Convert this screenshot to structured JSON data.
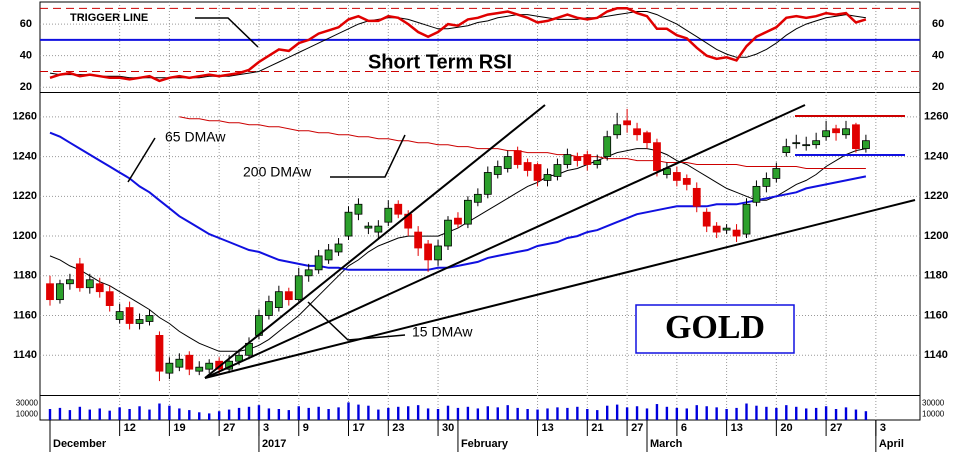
{
  "chart_data": {
    "type": "candlestick",
    "title": "GOLD",
    "up_color": "#2ca02c",
    "down_color": "#e00000",
    "ylim": [
      1120,
      1272
    ],
    "yticks": [
      1140,
      1160,
      1180,
      1200,
      1220,
      1240,
      1260
    ],
    "grid": true,
    "categories": [
      null,
      null,
      null,
      null,
      null,
      null,
      null,
      "12",
      null,
      null,
      null,
      null,
      "19",
      null,
      null,
      null,
      null,
      "27",
      null,
      null,
      null,
      "3",
      null,
      null,
      null,
      "9",
      null,
      null,
      null,
      null,
      "17",
      null,
      null,
      null,
      "23",
      null,
      null,
      null,
      null,
      "30",
      null,
      null,
      null,
      null,
      null,
      null,
      null,
      null,
      null,
      "13",
      null,
      null,
      null,
      null,
      "21",
      null,
      null,
      null,
      "27",
      null,
      null,
      null,
      null,
      "6",
      null,
      null,
      null,
      null,
      "13",
      null,
      null,
      null,
      null,
      "20",
      null,
      null,
      null,
      null,
      "27",
      null,
      null,
      null,
      null,
      "3"
    ],
    "months": [
      {
        "value": 0,
        "label": "December"
      },
      {
        "value": 21,
        "label": "2017"
      },
      {
        "value": 41,
        "label": "February"
      },
      {
        "value": 60,
        "label": "March"
      },
      {
        "value": 83,
        "label": "April"
      }
    ],
    "ohlc": [
      [
        1176,
        1180,
        1165,
        1168
      ],
      [
        1168,
        1178,
        1166,
        1176
      ],
      [
        1176,
        1181,
        1173,
        1178
      ],
      [
        1186,
        1189,
        1172,
        1174
      ],
      [
        1174,
        1181,
        1171,
        1178
      ],
      [
        1176,
        1179,
        1169,
        1172
      ],
      [
        1172,
        1175,
        1162,
        1165
      ],
      [
        1158,
        1166,
        1156,
        1162
      ],
      [
        1164,
        1167,
        1153,
        1156
      ],
      [
        1156,
        1161,
        1153,
        1158
      ],
      [
        1157,
        1163,
        1155,
        1160
      ],
      [
        1150,
        1152,
        1127,
        1132
      ],
      [
        1131,
        1139,
        1128,
        1136
      ],
      [
        1134,
        1141,
        1132,
        1138
      ],
      [
        1140,
        1142,
        1130,
        1133
      ],
      [
        1132,
        1137,
        1130,
        1134
      ],
      [
        1133,
        1138,
        1131,
        1136
      ],
      [
        1137,
        1139,
        1130,
        1133
      ],
      [
        1133,
        1140,
        1131,
        1137
      ],
      [
        1137,
        1143,
        1135,
        1140
      ],
      [
        1140,
        1149,
        1138,
        1146
      ],
      [
        1150,
        1163,
        1148,
        1160
      ],
      [
        1160,
        1170,
        1158,
        1167
      ],
      [
        1164,
        1175,
        1162,
        1172
      ],
      [
        1172,
        1174,
        1165,
        1168
      ],
      [
        1168,
        1184,
        1167,
        1180
      ],
      [
        1180,
        1186,
        1177,
        1183
      ],
      [
        1183,
        1193,
        1181,
        1190
      ],
      [
        1188,
        1196,
        1186,
        1193
      ],
      [
        1192,
        1199,
        1190,
        1196
      ],
      [
        1200,
        1215,
        1198,
        1212
      ],
      [
        1211,
        1219,
        1208,
        1216
      ],
      [
        1204,
        1207,
        1201,
        1205
      ],
      [
        1202,
        1208,
        1199,
        1205
      ],
      [
        1207,
        1218,
        1205,
        1214
      ],
      [
        1216,
        1218,
        1209,
        1211
      ],
      [
        1211,
        1213,
        1200,
        1204
      ],
      [
        1202,
        1205,
        1190,
        1194
      ],
      [
        1196,
        1198,
        1182,
        1188
      ],
      [
        1188,
        1198,
        1185,
        1195
      ],
      [
        1195,
        1210,
        1193,
        1208
      ],
      [
        1209,
        1212,
        1204,
        1206
      ],
      [
        1206,
        1220,
        1204,
        1218
      ],
      [
        1217,
        1224,
        1215,
        1221
      ],
      [
        1221,
        1235,
        1219,
        1232
      ],
      [
        1231,
        1238,
        1229,
        1235
      ],
      [
        1234,
        1243,
        1232,
        1240
      ],
      [
        1243,
        1245,
        1234,
        1236
      ],
      [
        1237,
        1239,
        1230,
        1233
      ],
      [
        1236,
        1237,
        1225,
        1228
      ],
      [
        1228,
        1234,
        1225,
        1231
      ],
      [
        1230,
        1239,
        1228,
        1236
      ],
      [
        1236,
        1244,
        1234,
        1241
      ],
      [
        1240,
        1242,
        1235,
        1238
      ],
      [
        1241,
        1243,
        1233,
        1236
      ],
      [
        1236,
        1241,
        1234,
        1238
      ],
      [
        1240,
        1253,
        1238,
        1250
      ],
      [
        1251,
        1262,
        1249,
        1256
      ],
      [
        1258,
        1264,
        1252,
        1256
      ],
      [
        1254,
        1257,
        1248,
        1251
      ],
      [
        1252,
        1253,
        1244,
        1247
      ],
      [
        1247,
        1249,
        1230,
        1233
      ],
      [
        1231,
        1237,
        1229,
        1234
      ],
      [
        1232,
        1235,
        1225,
        1228
      ],
      [
        1229,
        1231,
        1223,
        1226
      ],
      [
        1224,
        1227,
        1212,
        1215
      ],
      [
        1212,
        1214,
        1202,
        1205
      ],
      [
        1205,
        1207,
        1199,
        1202
      ],
      [
        1203,
        1206,
        1201,
        1204
      ],
      [
        1203,
        1206,
        1197,
        1200
      ],
      [
        1201,
        1219,
        1199,
        1216
      ],
      [
        1217,
        1228,
        1215,
        1225
      ],
      [
        1225,
        1232,
        1222,
        1229
      ],
      [
        1229,
        1237,
        1227,
        1234
      ],
      [
        1242,
        1249,
        1240,
        1245
      ],
      [
        1247,
        1251,
        1244,
        1247
      ],
      [
        1246,
        1250,
        1243,
        1246
      ],
      [
        1246,
        1252,
        1244,
        1248
      ],
      [
        1250,
        1258,
        1248,
        1253
      ],
      [
        1254,
        1256,
        1248,
        1252
      ],
      [
        1251,
        1258,
        1249,
        1254
      ],
      [
        1256,
        1257,
        1242,
        1244
      ],
      [
        1244,
        1251,
        1242,
        1248
      ],
      null
    ],
    "lines": [
      {
        "name": "15 DMAw",
        "color": "#000000",
        "width": 1,
        "values": [
          1190,
          1188,
          1185,
          1183,
          1180,
          1177,
          1175,
          1172,
          1169,
          1166,
          1163,
          1159,
          1156,
          1152,
          1149,
          1146,
          1144,
          1142,
          1142,
          1142,
          1143,
          1145,
          1148,
          1152,
          1156,
          1160,
          1165,
          1170,
          1175,
          1180,
          1185,
          1188,
          1192,
          1195,
          1197,
          1199,
          1200,
          1200,
          1200,
          1200,
          1202,
          1204,
          1207,
          1210,
          1213,
          1216,
          1219,
          1222,
          1225,
          1227,
          1230,
          1231,
          1233,
          1234,
          1236,
          1238,
          1240,
          1242,
          1243,
          1244,
          1244,
          1243,
          1241,
          1238,
          1236,
          1233,
          1230,
          1227,
          1224,
          1222,
          1220,
          1218,
          1218,
          1220,
          1223,
          1226,
          1228,
          1231,
          1235,
          1238,
          1241,
          1243,
          1244,
          null
        ]
      },
      {
        "name": "65 DMAw",
        "color": "#1010e0",
        "width": 2,
        "values": [
          1252,
          1250,
          1247,
          1244,
          1241,
          1238,
          1235,
          1232,
          1229,
          1225,
          1222,
          1218,
          1214,
          1210,
          1207,
          1204,
          1201,
          1199,
          1197,
          1195,
          1193,
          1192,
          1190,
          1188,
          1187,
          1186,
          1185,
          1185,
          1184,
          1184,
          1183,
          1183,
          1183,
          1183,
          1183,
          1183,
          1183,
          1183,
          1183,
          1184,
          1184,
          1185,
          1186,
          1187,
          1189,
          1190,
          1191,
          1192,
          1193,
          1195,
          1196,
          1197,
          1199,
          1200,
          1202,
          1203,
          1205,
          1207,
          1209,
          1211,
          1212,
          1213,
          1214,
          1215,
          1215,
          1215,
          1215,
          1216,
          1216,
          1216,
          1217,
          1218,
          1219,
          1220,
          1221,
          1222,
          1224,
          1225,
          1226,
          1227,
          1228,
          1229,
          1230,
          null
        ]
      },
      {
        "name": "200 DMAw",
        "color": "#cc0000",
        "width": 1,
        "values": [
          null,
          null,
          null,
          null,
          null,
          null,
          null,
          null,
          null,
          null,
          null,
          null,
          null,
          1260,
          1259,
          1259,
          1258,
          1258,
          1257,
          1257,
          1256,
          1256,
          1255,
          1255,
          1254,
          1253,
          1253,
          1252,
          1252,
          1251,
          1251,
          1250,
          1250,
          1249,
          1249,
          1248,
          1248,
          1247,
          1247,
          1246,
          1246,
          1245,
          1245,
          1244,
          1244,
          1244,
          1243,
          1243,
          1242,
          1242,
          1242,
          1241,
          1241,
          1240,
          1240,
          1240,
          1239,
          1239,
          1239,
          1238,
          1238,
          1238,
          1237,
          1237,
          1237,
          1236,
          1236,
          1236,
          1236,
          1236,
          1235,
          1235,
          1235,
          1235,
          1235,
          1235,
          1234,
          1234,
          1234,
          1234,
          1234,
          1234,
          1234,
          null
        ]
      }
    ],
    "rsi": {
      "title": "Short Term RSI",
      "ylim": [
        17,
        74
      ],
      "yticks": [
        20,
        40,
        60
      ],
      "mid": 50,
      "bands": [
        30,
        70
      ],
      "series": [
        {
          "name": "TRIGGER LINE",
          "color": "#000000",
          "width": 1,
          "values": [
            29,
            28,
            28,
            28,
            28,
            27,
            27,
            27,
            26,
            26,
            26,
            26,
            26,
            26,
            26,
            26,
            27,
            27,
            27,
            28,
            29,
            30,
            33,
            36,
            39,
            42,
            45,
            48,
            51,
            54,
            57,
            60,
            62,
            63,
            64,
            64,
            63,
            61,
            59,
            57,
            57,
            58,
            59,
            61,
            62,
            64,
            65,
            66,
            66,
            65,
            64,
            63,
            63,
            63,
            64,
            64,
            65,
            66,
            67,
            68,
            68,
            66,
            63,
            60,
            56,
            52,
            48,
            44,
            41,
            39,
            39,
            41,
            44,
            48,
            53,
            57,
            60,
            62,
            64,
            65,
            66,
            65,
            64,
            null
          ]
        },
        {
          "color": "#e00000",
          "width": 2.5,
          "values": [
            26,
            28,
            29,
            27,
            28,
            27,
            26,
            26,
            25,
            26,
            27,
            24,
            26,
            27,
            26,
            27,
            28,
            27,
            28,
            29,
            31,
            36,
            40,
            44,
            43,
            48,
            50,
            54,
            56,
            58,
            63,
            65,
            62,
            62,
            65,
            64,
            60,
            55,
            52,
            55,
            60,
            59,
            63,
            64,
            66,
            67,
            68,
            66,
            64,
            61,
            62,
            64,
            66,
            64,
            63,
            64,
            68,
            70,
            70,
            67,
            65,
            57,
            57,
            53,
            51,
            45,
            40,
            38,
            39,
            37,
            46,
            52,
            55,
            58,
            64,
            65,
            64,
            65,
            67,
            66,
            67,
            61,
            63,
            null
          ]
        }
      ]
    },
    "volume": {
      "color": "#0000dd",
      "ylim": [
        0,
        40000
      ],
      "yticks": [
        10000,
        30000
      ],
      "values": [
        20000,
        22000,
        18000,
        24000,
        19000,
        21000,
        17000,
        23000,
        20000,
        25000,
        19000,
        30000,
        26000,
        21000,
        18000,
        14000,
        12000,
        16000,
        19000,
        22000,
        24000,
        27000,
        21000,
        20000,
        18000,
        25000,
        22000,
        24000,
        20000,
        23000,
        32000,
        28000,
        26000,
        19000,
        22000,
        24000,
        25000,
        27000,
        21000,
        20000,
        26000,
        22000,
        24000,
        21000,
        25000,
        23000,
        27000,
        22000,
        20000,
        19000,
        21000,
        23000,
        22000,
        24000,
        20000,
        18000,
        26000,
        28000,
        23000,
        25000,
        21000,
        29000,
        24000,
        22000,
        21000,
        27000,
        25000,
        23000,
        20000,
        22000,
        30000,
        26000,
        24000,
        22000,
        27000,
        24000,
        21000,
        22000,
        25000,
        20000,
        23000,
        19000,
        16000,
        null
      ]
    }
  }
}
